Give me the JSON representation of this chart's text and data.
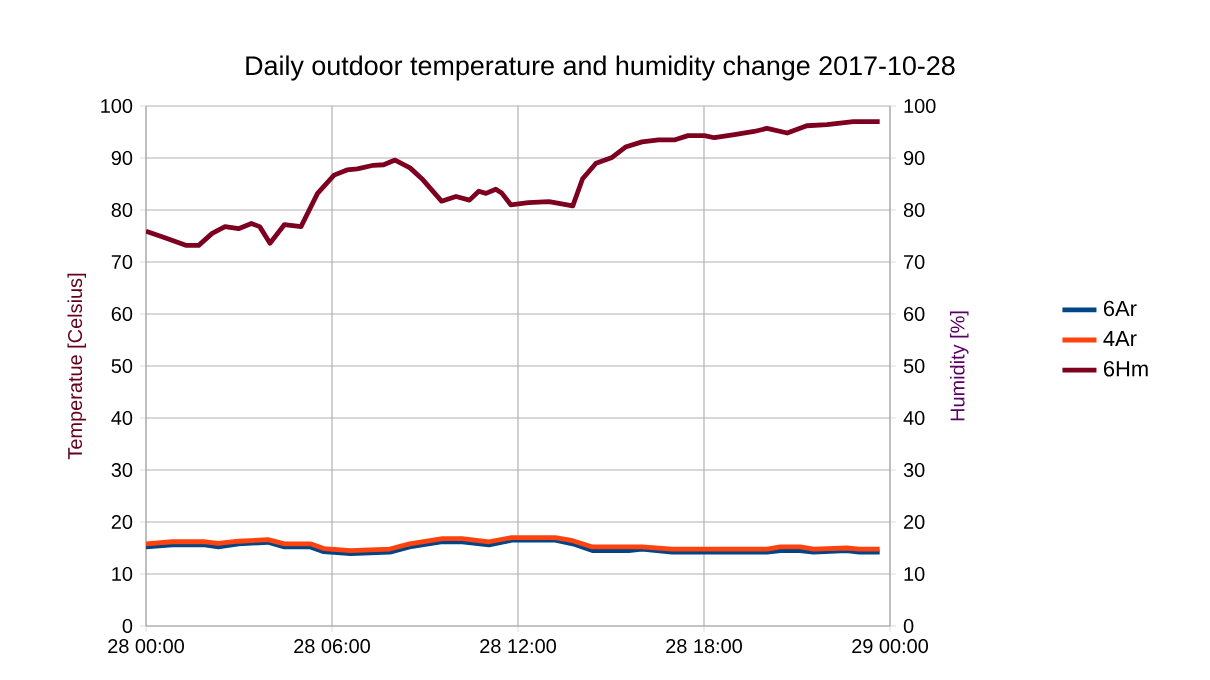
{
  "chart_data": {
    "type": "line",
    "title": "Daily outdoor temperature and humidity change 2017-10-28",
    "ylabel": "Temperatue [Celsius]",
    "y2label": "Humidity [%]",
    "xlim": [
      "2017-10-28T00:00",
      "2017-10-29T00:00"
    ],
    "xticks": [
      {
        "value": "2017-10-28T00:00",
        "label": "28 00:00"
      },
      {
        "value": "2017-10-28T06:00",
        "label": "28 06:00"
      },
      {
        "value": "2017-10-28T12:00",
        "label": "28 12:00"
      },
      {
        "value": "2017-10-28T18:00",
        "label": "28 18:00"
      },
      {
        "value": "2017-10-29T00:00",
        "label": "29 00:00"
      }
    ],
    "ylim": [
      0,
      100
    ],
    "yticks": [
      0,
      10,
      20,
      30,
      40,
      50,
      60,
      70,
      80,
      90,
      100
    ],
    "y2lim": [
      0,
      100
    ],
    "y2ticks": [
      0,
      10,
      20,
      30,
      40,
      50,
      60,
      70,
      80,
      90,
      100
    ],
    "grid": true,
    "legend": "right",
    "marker": "none",
    "line_style": "solid",
    "series": [
      {
        "name": "6Ar",
        "color": "#004586",
        "x": [
          "2017-10-28T00:00",
          "2017-10-28T00:51",
          "2017-10-28T01:54",
          "2017-10-28T02:20",
          "2017-10-28T02:59",
          "2017-10-28T03:56",
          "2017-10-28T04:28",
          "2017-10-28T05:18",
          "2017-10-28T05:44",
          "2017-10-28T06:36",
          "2017-10-28T07:52",
          "2017-10-28T08:30",
          "2017-10-28T09:34",
          "2017-10-28T10:12",
          "2017-10-28T11:04",
          "2017-10-28T11:48",
          "2017-10-28T13:12",
          "2017-10-28T13:46",
          "2017-10-28T14:24",
          "2017-10-28T15:34",
          "2017-10-28T16:00",
          "2017-10-28T16:58",
          "2017-10-28T18:20",
          "2017-10-28T20:02",
          "2017-10-28T20:28",
          "2017-10-28T21:06",
          "2017-10-28T21:32",
          "2017-10-28T22:36",
          "2017-10-28T23:00",
          "2017-10-28T23:40"
        ],
        "values": [
          15.2,
          15.6,
          15.6,
          15.2,
          15.8,
          16.1,
          15.2,
          15.2,
          14.3,
          13.9,
          14.2,
          15.2,
          16.2,
          16.2,
          15.6,
          16.5,
          16.5,
          15.8,
          14.5,
          14.5,
          14.8,
          14.2,
          14.2,
          14.2,
          14.5,
          14.5,
          14.2,
          14.5,
          14.2,
          14.2
        ]
      },
      {
        "name": "4Ar",
        "color": "#ff420e",
        "x": [
          "2017-10-28T00:00",
          "2017-10-28T00:51",
          "2017-10-28T01:54",
          "2017-10-28T02:20",
          "2017-10-28T02:59",
          "2017-10-28T03:56",
          "2017-10-28T04:28",
          "2017-10-28T05:18",
          "2017-10-28T05:44",
          "2017-10-28T06:36",
          "2017-10-28T07:52",
          "2017-10-28T08:30",
          "2017-10-28T09:34",
          "2017-10-28T10:12",
          "2017-10-28T11:04",
          "2017-10-28T11:48",
          "2017-10-28T13:12",
          "2017-10-28T13:46",
          "2017-10-28T14:24",
          "2017-10-28T15:34",
          "2017-10-28T16:00",
          "2017-10-28T16:58",
          "2017-10-28T18:20",
          "2017-10-28T20:02",
          "2017-10-28T20:28",
          "2017-10-28T21:06",
          "2017-10-28T21:32",
          "2017-10-28T22:36",
          "2017-10-28T23:00",
          "2017-10-28T23:40"
        ],
        "values": [
          15.8,
          16.2,
          16.2,
          15.9,
          16.3,
          16.6,
          15.8,
          15.8,
          14.9,
          14.5,
          14.8,
          15.8,
          16.8,
          16.8,
          16.2,
          17.0,
          17.0,
          16.4,
          15.2,
          15.2,
          15.2,
          14.8,
          14.8,
          14.8,
          15.2,
          15.2,
          14.8,
          15.0,
          14.8,
          14.8
        ]
      },
      {
        "name": "6Hm",
        "color": "#7e0021",
        "axis": "y2",
        "x": [
          "2017-10-28T00:00",
          "2017-10-28T00:38",
          "2017-10-28T01:17",
          "2017-10-28T01:42",
          "2017-10-28T02:08",
          "2017-10-28T02:33",
          "2017-10-28T02:59",
          "2017-10-28T03:24",
          "2017-10-28T03:40",
          "2017-10-28T04:00",
          "2017-10-28T04:28",
          "2017-10-28T05:00",
          "2017-10-28T05:32",
          "2017-10-28T06:04",
          "2017-10-28T06:29",
          "2017-10-28T06:49",
          "2017-10-28T07:20",
          "2017-10-28T07:40",
          "2017-10-28T08:02",
          "2017-10-28T08:31",
          "2017-10-28T08:56",
          "2017-10-28T09:32",
          "2017-10-28T10:00",
          "2017-10-28T10:26",
          "2017-10-28T10:44",
          "2017-10-28T10:58",
          "2017-10-28T11:17",
          "2017-10-28T11:29",
          "2017-10-28T11:46",
          "2017-10-28T12:20",
          "2017-10-28T13:00",
          "2017-10-28T13:46",
          "2017-10-28T14:05",
          "2017-10-28T14:31",
          "2017-10-28T15:02",
          "2017-10-28T15:28",
          "2017-10-28T16:00",
          "2017-10-28T16:32",
          "2017-10-28T17:04",
          "2017-10-28T17:29",
          "2017-10-28T18:01",
          "2017-10-28T18:20",
          "2017-10-28T18:59",
          "2017-10-28T19:37",
          "2017-10-28T20:02",
          "2017-10-28T20:41",
          "2017-10-28T21:19",
          "2017-10-28T21:58",
          "2017-10-28T22:49",
          "2017-10-28T23:40"
        ],
        "values": [
          75.9,
          74.6,
          73.2,
          73.2,
          75.5,
          76.8,
          76.4,
          77.4,
          76.8,
          73.6,
          77.2,
          76.8,
          83.2,
          86.7,
          87.7,
          87.9,
          88.6,
          88.7,
          89.6,
          88.1,
          85.8,
          81.7,
          82.6,
          81.9,
          83.6,
          83.2,
          84.0,
          83.2,
          81.0,
          81.4,
          81.6,
          80.8,
          86.0,
          89.0,
          90.1,
          92.1,
          93.1,
          93.5,
          93.5,
          94.3,
          94.3,
          93.9,
          94.5,
          95.1,
          95.7,
          94.8,
          96.2,
          96.4,
          97.0,
          97.0
        ]
      }
    ]
  }
}
